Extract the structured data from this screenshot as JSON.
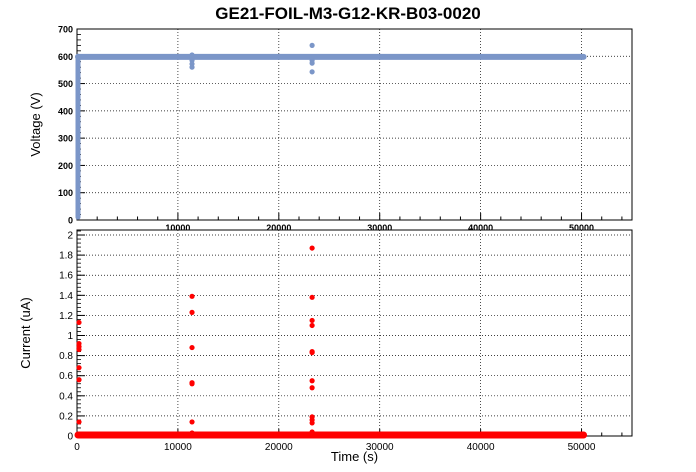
{
  "chart_data": {
    "title": "GE21-FOIL-M3-G12-KR-B03-0020",
    "grid": true,
    "panels": [
      {
        "type": "scatter",
        "xlabel": "",
        "ylabel": "Voltage (V)",
        "xlim": [
          0,
          55000
        ],
        "ylim": [
          0,
          700
        ],
        "xticks": [
          10000,
          20000,
          30000,
          40000,
          50000
        ],
        "yticks": [
          0,
          100,
          200,
          300,
          400,
          500,
          600,
          700
        ],
        "color": "#7b96c8",
        "series": [
          {
            "ramp": {
              "x": 0,
              "y_from": 10,
              "y_to": 600
            },
            "plateau": {
              "x_from": 0,
              "x_to": 50200,
              "y": 598
            },
            "points": [
              {
                "x": 11300,
                "y": 605
              },
              {
                "x": 11300,
                "y": 585
              },
              {
                "x": 11300,
                "y": 572
              },
              {
                "x": 11300,
                "y": 560
              },
              {
                "x": 23200,
                "y": 640
              },
              {
                "x": 23200,
                "y": 585
              },
              {
                "x": 23200,
                "y": 575
              },
              {
                "x": 23200,
                "y": 543
              }
            ]
          }
        ]
      },
      {
        "type": "scatter",
        "xlabel": "Time (s)",
        "ylabel": "Current (uA)",
        "xlim": [
          0,
          55000
        ],
        "ylim": [
          0,
          2.05
        ],
        "xticks": [
          0,
          10000,
          20000,
          30000,
          40000,
          50000
        ],
        "yticks": [
          0,
          0.2,
          0.4,
          0.6,
          0.8,
          1,
          1.2,
          1.4,
          1.6,
          1.8,
          2
        ],
        "color": "#ff0000",
        "series": [
          {
            "baseline": {
              "x_from": 0,
              "x_to": 50200,
              "y": 0.0
            },
            "points": [
              {
                "x": 100,
                "y": 1.13
              },
              {
                "x": 100,
                "y": 0.92
              },
              {
                "x": 100,
                "y": 0.89
              },
              {
                "x": 100,
                "y": 0.86
              },
              {
                "x": 100,
                "y": 0.68
              },
              {
                "x": 100,
                "y": 0.56
              },
              {
                "x": 100,
                "y": 0.14
              },
              {
                "x": 11300,
                "y": 1.39
              },
              {
                "x": 11300,
                "y": 1.23
              },
              {
                "x": 11300,
                "y": 0.88
              },
              {
                "x": 11300,
                "y": 0.53
              },
              {
                "x": 11300,
                "y": 0.52
              },
              {
                "x": 11300,
                "y": 0.14
              },
              {
                "x": 11300,
                "y": 0.03
              },
              {
                "x": 23200,
                "y": 1.87
              },
              {
                "x": 23200,
                "y": 1.38
              },
              {
                "x": 23200,
                "y": 1.15
              },
              {
                "x": 23200,
                "y": 1.1
              },
              {
                "x": 23200,
                "y": 0.84
              },
              {
                "x": 23200,
                "y": 0.83
              },
              {
                "x": 23200,
                "y": 0.55
              },
              {
                "x": 23200,
                "y": 0.48
              },
              {
                "x": 23200,
                "y": 0.19
              },
              {
                "x": 23200,
                "y": 0.16
              },
              {
                "x": 23200,
                "y": 0.13
              },
              {
                "x": 23200,
                "y": 0.04
              }
            ]
          }
        ]
      }
    ]
  }
}
